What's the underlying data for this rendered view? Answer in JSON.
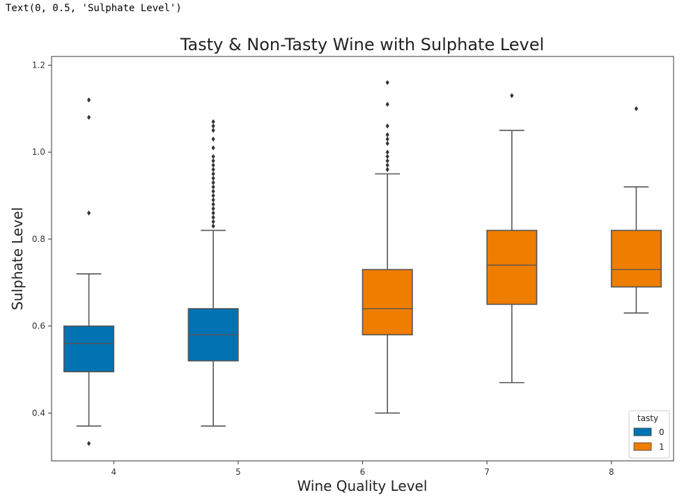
{
  "output_text": "Text(0, 0.5, 'Sulphate Level')",
  "colors": {
    "tasty_0": "#0173b2",
    "tasty_1": "#ee7d00",
    "line": "#555555",
    "outlier": "#333333"
  },
  "chart_data": {
    "type": "box",
    "title": "Tasty & Non-Tasty Wine with Sulphate Level",
    "xlabel": "Wine Quality Level",
    "ylabel": "Sulphate Level",
    "categories": [
      "4",
      "5",
      "6",
      "7",
      "8"
    ],
    "ylim": [
      0.29,
      1.22
    ],
    "yticks": [
      0.4,
      0.6,
      0.8,
      1.0,
      1.2
    ],
    "ytick_labels": [
      "0.4",
      "0.6",
      "0.8",
      "1.0",
      "1.2"
    ],
    "legend": {
      "title": "tasty",
      "entries": [
        "0",
        "1"
      ],
      "placement": "lower-right"
    },
    "boxes": [
      {
        "category": "4",
        "tasty": "0",
        "min": 0.37,
        "q1": 0.495,
        "median": 0.56,
        "q3": 0.6,
        "max": 0.72,
        "outliers": [
          0.33,
          0.86,
          1.08,
          1.12
        ]
      },
      {
        "category": "5",
        "tasty": "0",
        "min": 0.37,
        "q1": 0.52,
        "median": 0.58,
        "q3": 0.64,
        "max": 0.82,
        "outliers": [
          0.83,
          0.84,
          0.85,
          0.86,
          0.87,
          0.88,
          0.89,
          0.9,
          0.91,
          0.92,
          0.93,
          0.94,
          0.95,
          0.96,
          0.97,
          0.98,
          0.99,
          1.01,
          1.03,
          1.05,
          1.06,
          1.07
        ]
      },
      {
        "category": "6",
        "tasty": "1",
        "min": 0.4,
        "q1": 0.58,
        "median": 0.64,
        "q3": 0.73,
        "max": 0.95,
        "outliers": [
          0.96,
          0.97,
          0.98,
          0.99,
          1.0,
          1.02,
          1.03,
          1.04,
          1.06,
          1.11,
          1.16
        ]
      },
      {
        "category": "7",
        "tasty": "1",
        "min": 0.47,
        "q1": 0.65,
        "median": 0.74,
        "q3": 0.82,
        "max": 1.05,
        "outliers": [
          1.13
        ]
      },
      {
        "category": "8",
        "tasty": "1",
        "min": 0.63,
        "q1": 0.69,
        "median": 0.73,
        "q3": 0.82,
        "max": 0.92,
        "outliers": [
          1.1
        ]
      }
    ]
  }
}
